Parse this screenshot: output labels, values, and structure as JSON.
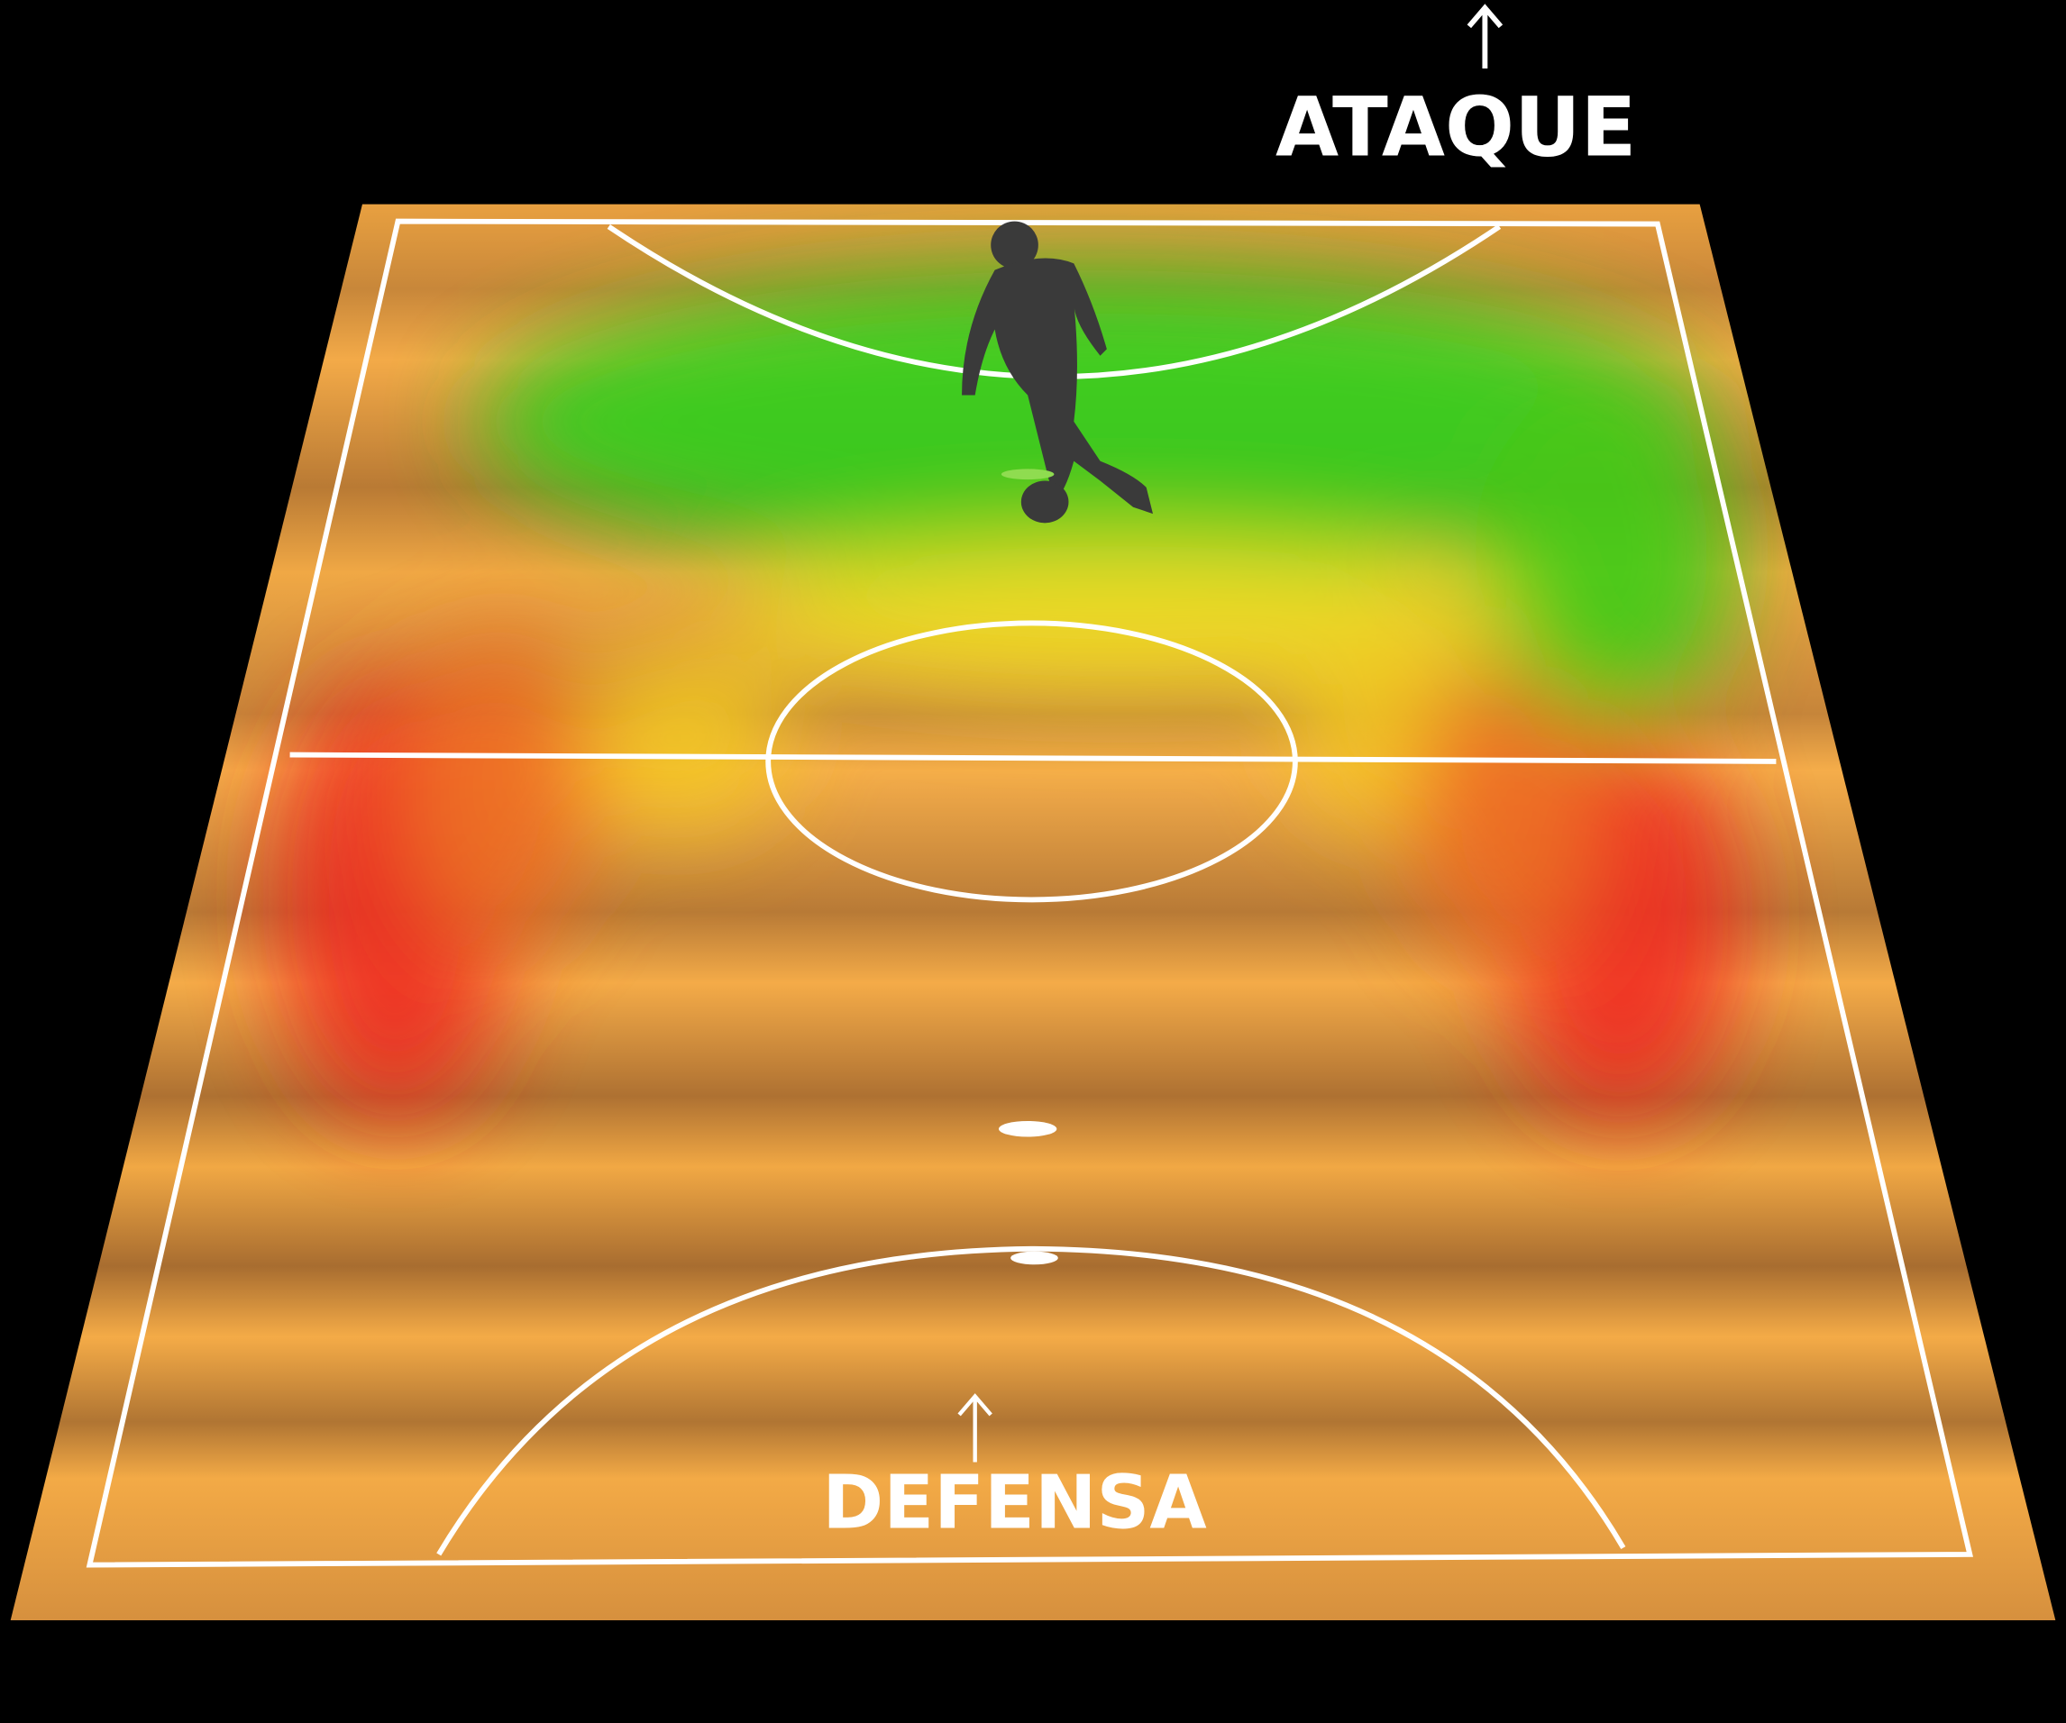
{
  "attack_label": "ATAQUE",
  "defense_label": "DEFENSA"
}
